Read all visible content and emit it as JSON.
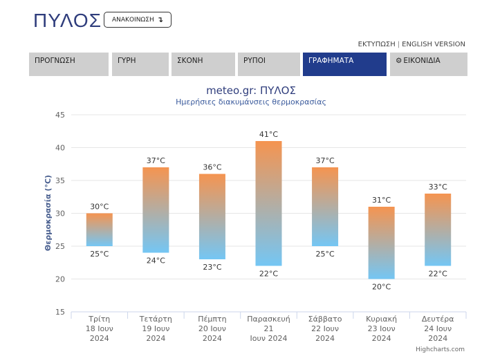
{
  "header": {
    "city": "ΠΥΛΟΣ",
    "announcement_label": "ΑΝΑΚΟΙΝΩΣΗ",
    "announcement_icon": "arrow-down-right-icon",
    "print_link": "ΕΚΤΥΠΩΣΗ",
    "english_link": "ENGLISH VERSION"
  },
  "tabs": [
    {
      "label": "ΠΡΟΓΝΩΣΗ",
      "active": false
    },
    {
      "label": "ΓΥΡΗ",
      "active": false
    },
    {
      "label": "ΣΚΟΝΗ",
      "active": false
    },
    {
      "label": "ΡΥΠΟΙ",
      "active": false
    },
    {
      "label": "ΓΡΑΦΗΜΑΤΑ",
      "active": true
    },
    {
      "label": "ΕΙΚΟΝΙΔΙΑ",
      "active": false,
      "icon": "gear-icon"
    }
  ],
  "colors": {
    "active_tab": "#213c8c",
    "inactive_tab": "#cfcfcf",
    "bar_top": "#f59450",
    "bar_bottom": "#74c6f4",
    "title": "#2f3d7c"
  },
  "chart_data": {
    "type": "bar",
    "subtype": "columnrange",
    "title": "meteo.gr: ΠΥΛΟΣ",
    "subtitle": "Ημερήσιες διακυμάνσεις θερμοκρασίας",
    "ylabel": "Θερμοκρασία (°C)",
    "ylim": [
      15,
      45
    ],
    "yticks": [
      15,
      20,
      25,
      30,
      35,
      40,
      45
    ],
    "grid": true,
    "unit_suffix": "°C",
    "categories": [
      [
        "Τρίτη",
        "18 Ιουν",
        "2024"
      ],
      [
        "Τετάρτη",
        "19 Ιουν",
        "2024"
      ],
      [
        "Πέμπτη",
        "20 Ιουν",
        "2024"
      ],
      [
        "Παρασκευή",
        "21",
        "Ιουν 2024"
      ],
      [
        "Σάββατο",
        "22 Ιουν",
        "2024"
      ],
      [
        "Κυριακή",
        "23 Ιουν",
        "2024"
      ],
      [
        "Δευτέρα",
        "24 Ιουν",
        "2024"
      ]
    ],
    "series": [
      {
        "low": [
          25,
          24,
          23,
          22,
          25,
          20,
          22
        ],
        "high": [
          30,
          37,
          36,
          41,
          37,
          31,
          33
        ]
      }
    ],
    "credits": "Highcharts.com"
  }
}
